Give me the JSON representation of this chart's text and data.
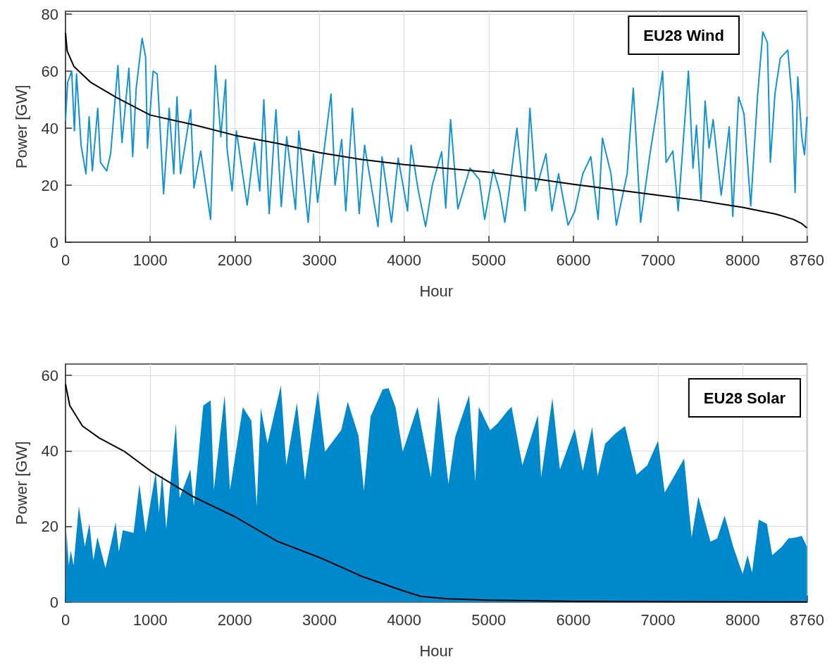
{
  "chart_data": [
    {
      "type": "line",
      "xlabel": "Hour",
      "ylabel": "Power [GW]",
      "xlim": [
        0,
        8760
      ],
      "xticks": [
        0,
        1000,
        2000,
        3000,
        4000,
        5000,
        6000,
        7000,
        8000,
        8760
      ],
      "ylim": [
        0,
        81
      ],
      "yticks": [
        0,
        20,
        40,
        60,
        80
      ],
      "grid": true,
      "annotations": [
        "EU28 Wind"
      ],
      "series": [
        {
          "color": "#1493d0",
          "x": [
            0,
            25,
            73,
            105,
            130,
            184,
            241,
            279,
            317,
            381,
            413,
            486,
            533,
            619,
            667,
            749,
            794,
            835,
            905,
            946,
            968,
            1035,
            1083,
            1159,
            1225,
            1279,
            1317,
            1359,
            1479,
            1517,
            1597,
            1714,
            1771,
            1835,
            1892,
            1908,
            1968,
            2019,
            2146,
            2232,
            2295,
            2343,
            2406,
            2486,
            2549,
            2613,
            2717,
            2756,
            2867,
            2930,
            2978,
            3137,
            3184,
            3263,
            3311,
            3390,
            3470,
            3533,
            3692,
            3740,
            3851,
            3930,
            4041,
            4083,
            4168,
            4254,
            4333,
            4444,
            4492,
            4549,
            4635,
            4778,
            4889,
            4952,
            5054,
            5127,
            5190,
            5238,
            5333,
            5429,
            5486,
            5556,
            5676,
            5746,
            5825,
            5937,
            6016,
            6111,
            6206,
            6292,
            6343,
            6444,
            6508,
            6635,
            6708,
            6746,
            6794,
            6905,
            7000,
            7054,
            7095,
            7175,
            7238,
            7359,
            7413,
            7454,
            7508,
            7556,
            7603,
            7651,
            7746,
            7841,
            7883,
            7952,
            8016,
            8095,
            8175,
            8238,
            8292,
            8327,
            8381,
            8444,
            8533,
            8587,
            8619,
            8651,
            8698,
            8730,
            8760
          ],
          "values": [
            42.7,
            56,
            60,
            39,
            59,
            34,
            24,
            44,
            25,
            47,
            28,
            25,
            31,
            62,
            35,
            61,
            30,
            54,
            71.5,
            65,
            33,
            60,
            59,
            17,
            47,
            24,
            51,
            24,
            46.5,
            19,
            32,
            8,
            62,
            37,
            57,
            33,
            18,
            39,
            13,
            35,
            18,
            50,
            10,
            46.5,
            12.5,
            37,
            11.5,
            39,
            7,
            31,
            14,
            52,
            20,
            36,
            11,
            47,
            10,
            34,
            5.5,
            30,
            7,
            29.5,
            11,
            34,
            18,
            5.5,
            20,
            31.7,
            12,
            43,
            11.7,
            26,
            22,
            8,
            25.5,
            18,
            7,
            17.4,
            40,
            11,
            47,
            18,
            31,
            11,
            24,
            6,
            10.8,
            24,
            30,
            8,
            36.5,
            24,
            6,
            24,
            54,
            33.6,
            7,
            31,
            49,
            60,
            28,
            32,
            11,
            60,
            26,
            41,
            15,
            49.5,
            33,
            43,
            16.5,
            40.5,
            9,
            51,
            45,
            12.7,
            51,
            73.8,
            70,
            28,
            52,
            64.5,
            67.4,
            49,
            17.4,
            58,
            37,
            30.7,
            44
          ]
        },
        {
          "color": "#000000",
          "x": [
            0,
            20,
            100,
            300,
            600,
            1000,
            1500,
            2000,
            2500,
            3000,
            3500,
            4000,
            5000,
            6000,
            7000,
            7500,
            8000,
            8400,
            8600,
            8700,
            8760
          ],
          "values": [
            73.4,
            67,
            61.6,
            56,
            50.8,
            44.6,
            41.3,
            37.5,
            34.7,
            31.4,
            29,
            27.2,
            24.6,
            20.3,
            16.5,
            14.6,
            12.2,
            9.8,
            8,
            6.5,
            5
          ]
        }
      ]
    },
    {
      "type": "line",
      "xlabel": "Hour",
      "ylabel": "Power [GW]",
      "xlim": [
        0,
        8760
      ],
      "xticks": [
        0,
        1000,
        2000,
        3000,
        4000,
        5000,
        6000,
        7000,
        8000,
        8760
      ],
      "ylim": [
        0,
        63
      ],
      "yticks": [
        0,
        20,
        40,
        60
      ],
      "grid": true,
      "annotations": [
        "EU28 Solar"
      ],
      "series": [
        {
          "type": "area",
          "color": "#0088cc",
          "x": [
            0,
            13,
            38,
            63,
            95,
            158,
            228,
            282,
            329,
            377,
            472,
            544,
            592,
            630,
            677,
            804,
            873,
            946,
            1019,
            1066,
            1104,
            1142,
            1190,
            1304,
            1348,
            1475,
            1516,
            1627,
            1715,
            1753,
            1880,
            1943,
            2095,
            2196,
            2259,
            2307,
            2386,
            2544,
            2608,
            2734,
            2829,
            2981,
            3066,
            3256,
            3335,
            3462,
            3525,
            3604,
            3747,
            3816,
            3899,
            3984,
            4111,
            4159,
            4317,
            4406,
            4524,
            4603,
            4768,
            4841,
            4883,
            5016,
            5105,
            5222,
            5270,
            5397,
            5581,
            5619,
            5752,
            5841,
            6016,
            6111,
            6222,
            6286,
            6375,
            6492,
            6610,
            6746,
            6873,
            7000,
            7079,
            7190,
            7308,
            7397,
            7476,
            7619,
            7698,
            7787,
            7889,
            8000,
            8057,
            8111,
            8190,
            8286,
            8349,
            8460,
            8540,
            8629,
            8698,
            8760
          ],
          "values": [
            0,
            18.6,
            9.7,
            13.6,
            9.7,
            25.4,
            14.7,
            20.8,
            11.1,
            17.2,
            9,
            16.1,
            21.1,
            13.3,
            19,
            18.3,
            31.2,
            18.3,
            28.3,
            34.4,
            23.7,
            34,
            19.4,
            47.3,
            27.6,
            35.1,
            25.4,
            52,
            53.4,
            29.7,
            54.8,
            29.7,
            51.6,
            48,
            25.4,
            51.3,
            42,
            57.3,
            36.2,
            52.7,
            32.3,
            55.9,
            39.8,
            45.5,
            53,
            44,
            29.4,
            49.1,
            56.3,
            56.6,
            51.6,
            39.8,
            48.4,
            51.7,
            33,
            54.5,
            31.2,
            43.7,
            54.7,
            31.9,
            51.7,
            45.5,
            47.3,
            50.6,
            51.7,
            36.2,
            49.5,
            33,
            54,
            35.1,
            45.9,
            34.7,
            46.3,
            33.3,
            41.9,
            44.5,
            46.6,
            33.7,
            36.2,
            42.7,
            29,
            33.3,
            38,
            17.1,
            27.9,
            16,
            16.8,
            22.9,
            14.6,
            7.4,
            12.4,
            7.8,
            21.8,
            20.7,
            12.4,
            14.6,
            16.8,
            17.1,
            17.5,
            14.6
          ]
        },
        {
          "color": "#000000",
          "x": [
            0,
            50,
            200,
            400,
            700,
            1000,
            1500,
            2000,
            2500,
            3000,
            3500,
            4000,
            4200,
            4500,
            5000,
            6000,
            7000,
            8760
          ],
          "values": [
            57.7,
            52,
            46.6,
            43.4,
            39.8,
            34.8,
            28,
            22.6,
            16.1,
            11.8,
            6.8,
            2.9,
            1.5,
            0.9,
            0.5,
            0.2,
            0.1,
            0
          ]
        }
      ]
    }
  ]
}
